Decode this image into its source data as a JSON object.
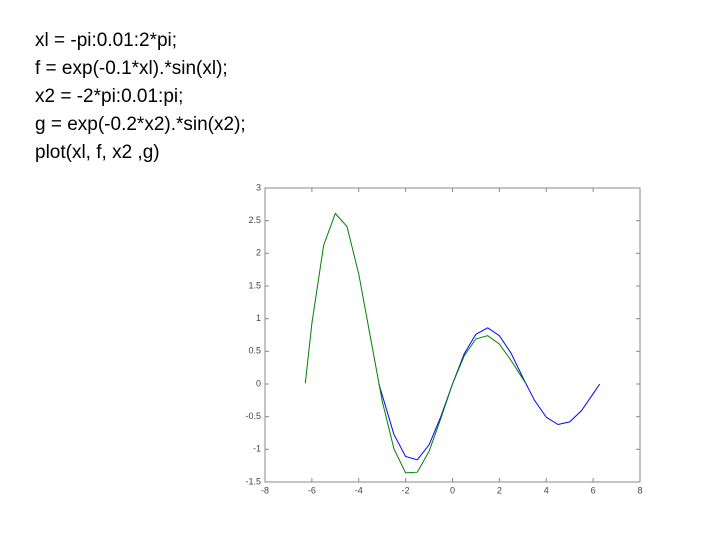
{
  "code": [
    "xl = -pi:0.01:2*pi;",
    "f = exp(-0.1*xl).*sin(xl);",
    "x2 = -2*pi:0.01:pi;",
    "g = exp(-0.2*x2).*sin(x2);",
    "plot(xl, f, x2 ,g)"
  ],
  "chart_data": {
    "type": "line",
    "xlim": [
      -8,
      8
    ],
    "xticks": [
      -8,
      -6,
      -4,
      -2,
      0,
      2,
      4,
      6,
      8
    ],
    "ylim": [
      -1.5,
      3
    ],
    "yticks": [
      -1.5,
      -1,
      -0.5,
      0,
      0.5,
      1,
      1.5,
      2,
      2.5,
      3
    ],
    "series": [
      {
        "color": "#0000ff",
        "x": [
          -3.14,
          -2.5,
          -2,
          -1.5,
          -1,
          -0.5,
          0,
          0.5,
          1,
          1.5,
          2,
          2.5,
          3,
          3.5,
          4,
          4.5,
          5,
          5.5,
          6,
          6.28
        ],
        "values": [
          0,
          -0.77,
          -1.11,
          -1.16,
          -0.93,
          -0.5,
          0,
          0.46,
          0.76,
          0.86,
          0.74,
          0.47,
          0.1,
          -0.25,
          -0.51,
          -0.62,
          -0.58,
          -0.41,
          -0.15,
          0
        ]
      },
      {
        "color": "#008000",
        "x": [
          -6.28,
          -6,
          -5.5,
          -5,
          -4.5,
          -4,
          -3.5,
          -3,
          -2.5,
          -2,
          -1.5,
          -1,
          -0.5,
          0,
          0.5,
          1,
          1.5,
          2,
          2.5,
          3,
          3.14
        ],
        "values": [
          0.01,
          0.93,
          2.12,
          2.61,
          2.41,
          1.68,
          0.71,
          -0.26,
          -0.99,
          -1.36,
          -1.35,
          -1.03,
          -0.53,
          0,
          0.43,
          0.69,
          0.74,
          0.61,
          0.36,
          0.08,
          0
        ]
      }
    ]
  }
}
